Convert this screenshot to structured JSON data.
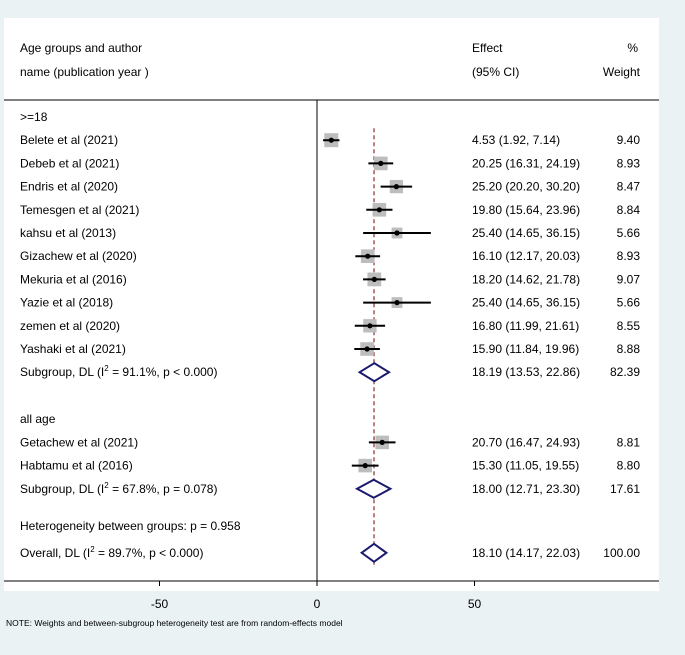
{
  "chart_data": {
    "type": "forest",
    "header": {
      "col1_line1": "Age groups and author",
      "col1_line2": "name (publication year )",
      "effect_line1": "Effect",
      "effect_line2": "(95% CI)",
      "weight_line1": "%",
      "weight_line2": "Weight"
    },
    "xlim": [
      -100,
      100
    ],
    "x_ticks": [
      -50,
      0,
      50
    ],
    "x_tick_labels": [
      "-50",
      "0",
      "50"
    ],
    "overall_effect": 18.1,
    "groups": [
      {
        "label": ">=18",
        "studies": [
          {
            "name": "Belete et al (2021)",
            "effect": 4.53,
            "lo": 1.92,
            "hi": 7.14,
            "ci_text": "4.53 (1.92, 7.14)",
            "weight": "9.40"
          },
          {
            "name": "Debeb et al  (2021)",
            "effect": 20.25,
            "lo": 16.31,
            "hi": 24.19,
            "ci_text": "20.25 (16.31, 24.19)",
            "weight": "8.93"
          },
          {
            "name": "Endris  et al  (2020)",
            "effect": 25.2,
            "lo": 20.2,
            "hi": 30.2,
            "ci_text": "25.20 (20.20, 30.20)",
            "weight": "8.47"
          },
          {
            "name": "Temesgen et al  (2021)",
            "effect": 19.8,
            "lo": 15.64,
            "hi": 23.96,
            "ci_text": "19.80 (15.64, 23.96)",
            "weight": "8.84"
          },
          {
            "name": "kahsu et al (2013)",
            "effect": 25.4,
            "lo": 14.65,
            "hi": 36.15,
            "ci_text": "25.40 (14.65, 36.15)",
            "weight": "5.66"
          },
          {
            "name": "Gizachew et al (2020)",
            "effect": 16.1,
            "lo": 12.17,
            "hi": 20.03,
            "ci_text": "16.10 (12.17, 20.03)",
            "weight": "8.93"
          },
          {
            "name": "Mekuria et al (2016)",
            "effect": 18.2,
            "lo": 14.62,
            "hi": 21.78,
            "ci_text": "18.20 (14.62, 21.78)",
            "weight": "9.07"
          },
          {
            "name": "Yazie et al  (2018)",
            "effect": 25.4,
            "lo": 14.65,
            "hi": 36.15,
            "ci_text": "25.40 (14.65, 36.15)",
            "weight": "5.66"
          },
          {
            "name": "zemen et al (2020)",
            "effect": 16.8,
            "lo": 11.99,
            "hi": 21.61,
            "ci_text": "16.80 (11.99, 21.61)",
            "weight": "8.55"
          },
          {
            "name": "Yashaki et al (2021)",
            "effect": 15.9,
            "lo": 11.84,
            "hi": 19.96,
            "ci_text": "15.90 (11.84, 19.96)",
            "weight": "8.88"
          }
        ],
        "subgroup": {
          "label_pre": "Subgroup, DL (I",
          "label_post": " = 91.1%, p < 0.000)",
          "effect": 18.19,
          "lo": 13.53,
          "hi": 22.86,
          "ci_text": "18.19 (13.53, 22.86)",
          "weight": "82.39"
        }
      },
      {
        "label": "all age",
        "studies": [
          {
            "name": "Getachew et al (2021)",
            "effect": 20.7,
            "lo": 16.47,
            "hi": 24.93,
            "ci_text": "20.70 (16.47, 24.93)",
            "weight": "8.81"
          },
          {
            "name": "Habtamu et al (2016)",
            "effect": 15.3,
            "lo": 11.05,
            "hi": 19.55,
            "ci_text": "15.30 (11.05, 19.55)",
            "weight": "8.80"
          }
        ],
        "subgroup": {
          "label_pre": "Subgroup, DL (I",
          "label_post": " = 67.8%, p = 0.078)",
          "effect": 18.0,
          "lo": 12.71,
          "hi": 23.3,
          "ci_text": "18.00 (12.71, 23.30)",
          "weight": "17.61"
        }
      }
    ],
    "heterogeneity_text": "Heterogeneity between groups: p = 0.958",
    "overall": {
      "label_pre": "Overall, DL (I",
      "label_post": " = 89.7%, p < 0.000)",
      "effect": 18.1,
      "lo": 14.17,
      "hi": 22.03,
      "ci_text": "18.10 (14.17, 22.03)",
      "weight": "100.00"
    },
    "superscript": "2",
    "note": "NOTE: Weights and between-subgroup heterogeneity test are from random-effects model",
    "colors": {
      "diamond": "#1a1a6e",
      "ref_line": "#8b2c2c",
      "box": "#bdbdbd",
      "frame": "#ffffff",
      "background": "#eaf2f3"
    }
  }
}
